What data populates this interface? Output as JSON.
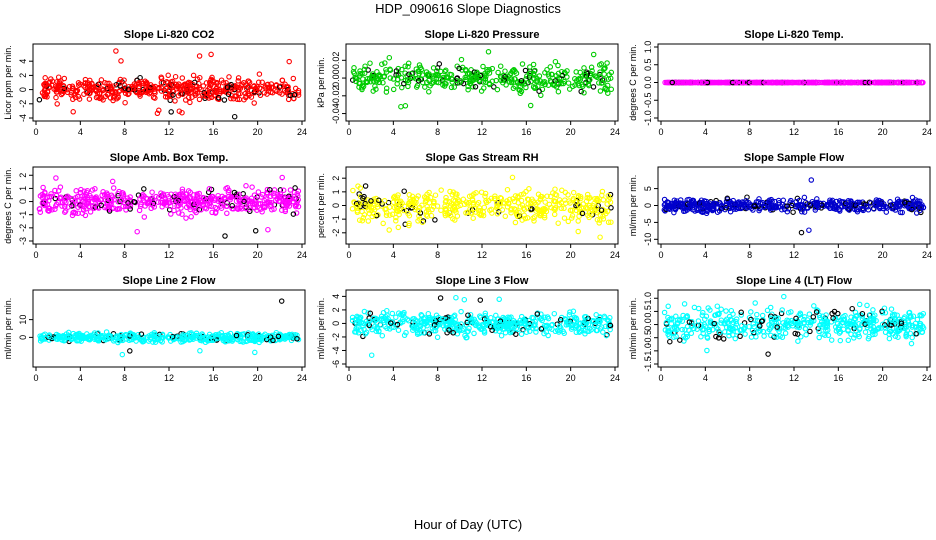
{
  "figure": {
    "title": "HDP_090616  Slope Diagnostics",
    "xlabel": "Hour of Day (UTC)"
  },
  "colors": {
    "black_points": "#000000",
    "axis": "#000000"
  },
  "chart_data": [
    {
      "type": "scatter",
      "title": "Slope Li-820 CO2",
      "ylabel": "Licor ppm per min.",
      "xlim": [
        0,
        24
      ],
      "ylim": [
        -4,
        6
      ],
      "xticks": [
        0,
        4,
        8,
        12,
        16,
        20,
        24
      ],
      "yticks": [
        -4,
        -2,
        0,
        2,
        4
      ],
      "color": "#ff0000",
      "spread": 1.3,
      "n": 520,
      "seed": 11,
      "extreme": [
        -4,
        5.5
      ]
    },
    {
      "type": "scatter",
      "title": "Slope Li-820 Pressure",
      "ylabel": "kPa per min.",
      "xlim": [
        0,
        24
      ],
      "ylim": [
        -0.045,
        0.035
      ],
      "xticks": [
        0,
        4,
        8,
        12,
        16,
        20,
        24
      ],
      "yticks": [
        -0.04,
        -0.02,
        0.0,
        0.02
      ],
      "color": "#00cc00",
      "spread": 0.013,
      "n": 420,
      "seed": 23,
      "extreme": [
        -0.04,
        0.032
      ]
    },
    {
      "type": "scatter",
      "title": "Slope Li-820 Temp.",
      "ylabel": "degrees C per min.",
      "xlim": [
        0,
        24
      ],
      "ylim": [
        -1.0,
        1.0
      ],
      "xticks": [
        0,
        4,
        8,
        12,
        16,
        20,
        24
      ],
      "yticks": [
        -1.0,
        -0.5,
        0.0,
        0.5,
        1.0
      ],
      "color": "#ff00ff",
      "spread": 0.0,
      "n": 480,
      "seed": 37,
      "extreme": [
        0,
        0
      ]
    },
    {
      "type": "scatter",
      "title": "Slope Amb. Box Temp.",
      "ylabel": "degrees C per min.",
      "xlim": [
        0,
        24
      ],
      "ylim": [
        -3,
        2.4
      ],
      "xticks": [
        0,
        4,
        8,
        12,
        16,
        20,
        24
      ],
      "yticks": [
        -3,
        -2,
        -1,
        0,
        1,
        2
      ],
      "color": "#ff00ff",
      "spread": 0.8,
      "n": 520,
      "seed": 41,
      "extreme": [
        -3,
        2
      ]
    },
    {
      "type": "scatter",
      "title": "Slope Gas Stream RH",
      "ylabel": "percent per min.",
      "xlim": [
        0,
        24
      ],
      "ylim": [
        -2.6,
        2.6
      ],
      "xticks": [
        0,
        4,
        8,
        12,
        16,
        20,
        24
      ],
      "yticks": [
        -2,
        -1,
        0,
        1,
        2
      ],
      "color": "#ffff00",
      "spread": 1.0,
      "n": 460,
      "seed": 53,
      "extreme": [
        -2.5,
        2.3
      ]
    },
    {
      "type": "scatter",
      "title": "Slope Sample Flow",
      "ylabel": "ml/min per min.",
      "xlim": [
        0,
        24
      ],
      "ylim": [
        -10.5,
        10.5
      ],
      "xticks": [
        0,
        4,
        8,
        12,
        16,
        20,
        24
      ],
      "yticks": [
        -10,
        -5,
        0,
        5
      ],
      "color": "#0000cc",
      "spread": 1.6,
      "n": 500,
      "seed": 67,
      "extreme": [
        -9,
        9
      ]
    },
    {
      "type": "scatter",
      "title": "Slope Line 2 Flow",
      "ylabel": "ml/min per min.",
      "xlim": [
        0,
        24
      ],
      "ylim": [
        -15,
        25
      ],
      "xticks": [
        0,
        4,
        8,
        12,
        16,
        20,
        24
      ],
      "yticks": [
        0,
        10
      ],
      "color": "#00ffff",
      "spread": 2.2,
      "n": 470,
      "seed": 79,
      "extreme": [
        -10,
        23
      ]
    },
    {
      "type": "scatter",
      "title": "Slope Line 3 Flow",
      "ylabel": "ml/min per min.",
      "xlim": [
        0,
        24
      ],
      "ylim": [
        -6,
        4.5
      ],
      "xticks": [
        0,
        4,
        8,
        12,
        16,
        20,
        24
      ],
      "yticks": [
        -6,
        -4,
        -2,
        0,
        2,
        4
      ],
      "color": "#00ffff",
      "spread": 1.4,
      "n": 520,
      "seed": 83,
      "extreme": [
        -5.5,
        4
      ]
    },
    {
      "type": "scatter",
      "title": "Slope Line 4 (LT) Flow",
      "ylabel": "ml/min per min.",
      "xlim": [
        0,
        24
      ],
      "ylim": [
        -1.5,
        1.2
      ],
      "xticks": [
        0,
        4,
        8,
        12,
        16,
        20,
        24
      ],
      "yticks": [
        -1.5,
        -1.0,
        -0.5,
        0.0,
        0.5,
        1.0
      ],
      "color": "#00ffff",
      "spread": 0.5,
      "n": 500,
      "seed": 97,
      "extreme": [
        -1.4,
        1.1
      ]
    }
  ]
}
